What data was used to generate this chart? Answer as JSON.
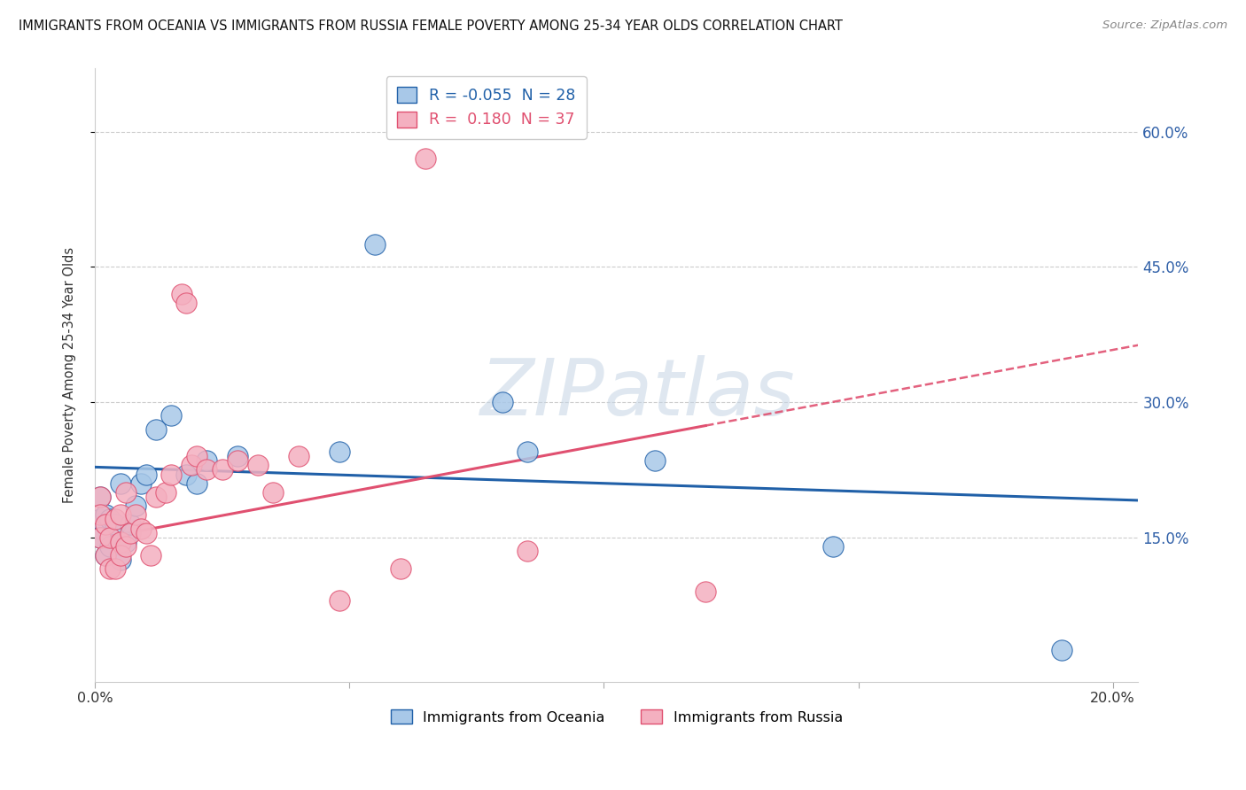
{
  "title": "IMMIGRANTS FROM OCEANIA VS IMMIGRANTS FROM RUSSIA FEMALE POVERTY AMONG 25-34 YEAR OLDS CORRELATION CHART",
  "source": "Source: ZipAtlas.com",
  "ylabel": "Female Poverty Among 25-34 Year Olds",
  "xlim": [
    0.0,
    0.205
  ],
  "ylim": [
    -0.01,
    0.67
  ],
  "ytick_vals": [
    0.15,
    0.3,
    0.45,
    0.6
  ],
  "ytick_labels": [
    "15.0%",
    "30.0%",
    "45.0%",
    "60.0%"
  ],
  "xtick_vals": [
    0.0,
    0.05,
    0.1,
    0.15,
    0.2
  ],
  "xtick_labels": [
    "0.0%",
    "",
    "",
    "",
    "20.0%"
  ],
  "legend1_label": "Immigrants from Oceania",
  "legend2_label": "Immigrants from Russia",
  "r1": -0.055,
  "n1": 28,
  "r2": 0.18,
  "n2": 37,
  "color1": "#a8c8e8",
  "color2": "#f4b0c0",
  "line1_color": "#2060a8",
  "line2_color": "#e05070",
  "watermark": "ZIPatlas",
  "scatter1_x": [
    0.001,
    0.001,
    0.001,
    0.002,
    0.002,
    0.003,
    0.003,
    0.004,
    0.005,
    0.005,
    0.006,
    0.007,
    0.008,
    0.009,
    0.01,
    0.012,
    0.015,
    0.018,
    0.02,
    0.022,
    0.028,
    0.048,
    0.055,
    0.08,
    0.085,
    0.11,
    0.145,
    0.19
  ],
  "scatter1_y": [
    0.195,
    0.17,
    0.15,
    0.175,
    0.13,
    0.17,
    0.14,
    0.165,
    0.125,
    0.21,
    0.145,
    0.165,
    0.185,
    0.21,
    0.22,
    0.27,
    0.285,
    0.22,
    0.21,
    0.235,
    0.24,
    0.245,
    0.475,
    0.3,
    0.245,
    0.235,
    0.14,
    0.025
  ],
  "scatter2_x": [
    0.001,
    0.001,
    0.001,
    0.002,
    0.002,
    0.003,
    0.003,
    0.004,
    0.004,
    0.005,
    0.005,
    0.005,
    0.006,
    0.006,
    0.007,
    0.008,
    0.009,
    0.01,
    0.011,
    0.012,
    0.014,
    0.015,
    0.017,
    0.018,
    0.019,
    0.02,
    0.022,
    0.025,
    0.028,
    0.032,
    0.035,
    0.04,
    0.048,
    0.06,
    0.065,
    0.085,
    0.12
  ],
  "scatter2_y": [
    0.195,
    0.175,
    0.15,
    0.165,
    0.13,
    0.15,
    0.115,
    0.115,
    0.17,
    0.145,
    0.175,
    0.13,
    0.2,
    0.14,
    0.155,
    0.175,
    0.16,
    0.155,
    0.13,
    0.195,
    0.2,
    0.22,
    0.42,
    0.41,
    0.23,
    0.24,
    0.225,
    0.225,
    0.235,
    0.23,
    0.2,
    0.24,
    0.08,
    0.115,
    0.57,
    0.135,
    0.09
  ],
  "background_color": "#ffffff",
  "grid_color": "#cccccc",
  "line1_intercept": 0.228,
  "line1_slope": -0.18,
  "line2_intercept": 0.148,
  "line2_slope": 1.05
}
